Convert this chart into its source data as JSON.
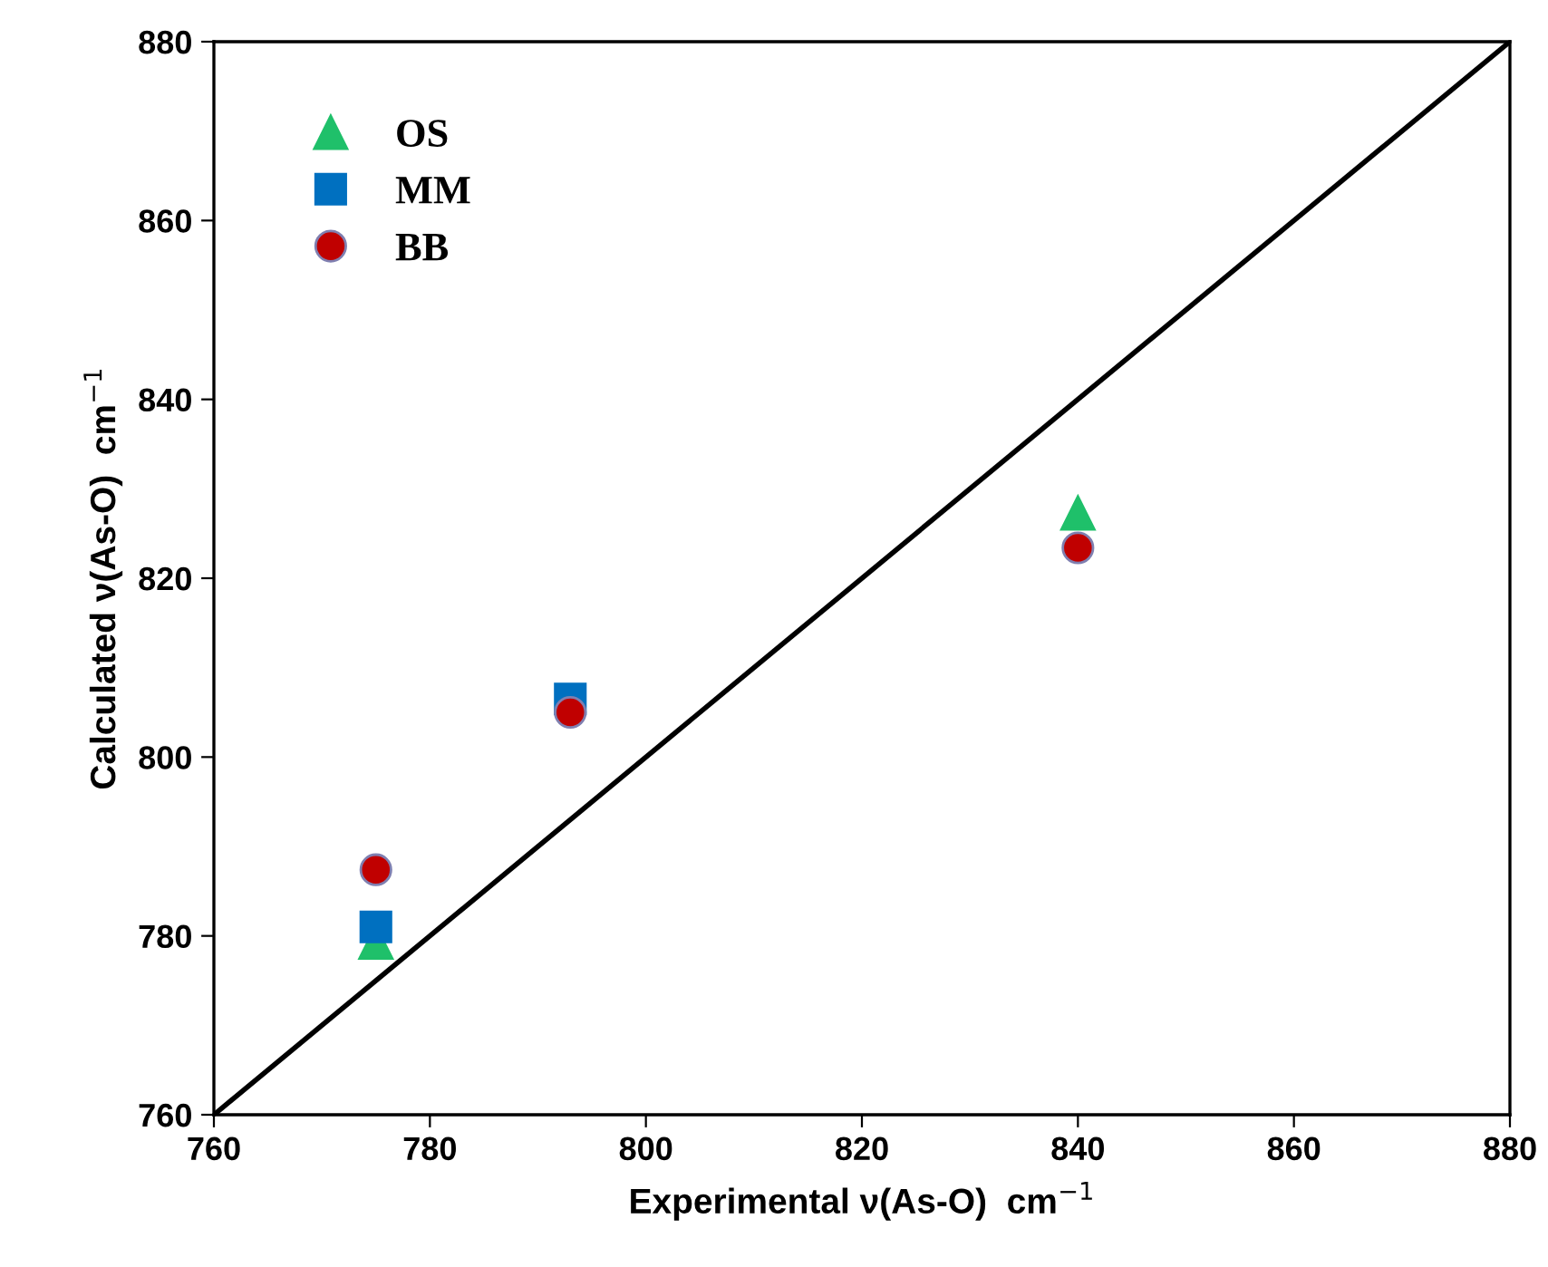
{
  "chart_data": {
    "type": "scatter",
    "xlabel": "Experimental ν(As-O)  cm$^{−1}$",
    "ylabel": "Calculated ν(As-O)  cm$^{−1}$",
    "x": [
      775,
      793,
      840
    ],
    "series": [
      {
        "name": "OS",
        "color": "#1fc06a",
        "marker": "triangle",
        "values": [
          779.3,
          null,
          827.3
        ]
      },
      {
        "name": "MM",
        "color": "#0070c0",
        "marker": "square",
        "values": [
          781,
          806.5,
          null
        ]
      },
      {
        "name": "BB",
        "color": "#c00000",
        "marker": "circle",
        "values": [
          787.4,
          805,
          823.4
        ]
      },
      {
        "type": "line",
        "color": "#000000",
        "x": [
          760,
          880
        ],
        "values": [
          760,
          880
        ],
        "marker": "none"
      }
    ],
    "xlim": [
      760,
      880
    ],
    "ylim": [
      760,
      880
    ],
    "xticks": [
      760,
      780,
      800,
      820,
      840,
      860,
      880
    ],
    "yticks": [
      760,
      780,
      800,
      820,
      840,
      860,
      880
    ],
    "grid": false,
    "legend": "top left"
  }
}
